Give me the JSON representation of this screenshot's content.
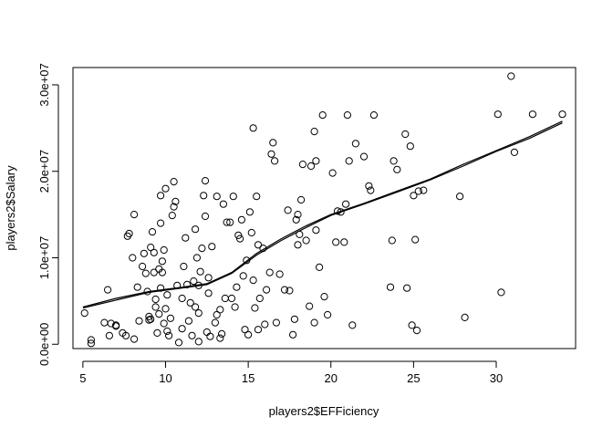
{
  "chart_data": {
    "type": "scatter",
    "title": "",
    "xlabel": "players2$EFFiciency",
    "ylabel": "players2$Salary",
    "xlim": [
      4.4,
      34.8
    ],
    "ylim": [
      -500000,
      32000000
    ],
    "x_ticks": [
      5,
      10,
      15,
      20,
      25,
      30
    ],
    "x_tick_labels": [
      "5",
      "10",
      "15",
      "20",
      "25",
      "30"
    ],
    "y_ticks": [
      0,
      10000000,
      20000000,
      30000000
    ],
    "y_tick_labels": [
      "0.0e+00",
      "1.0e+07",
      "2.0e+07",
      "3.0e+07"
    ],
    "grid": false,
    "legend": "none",
    "points": [
      [
        5.1,
        3600000
      ],
      [
        5.5,
        500000
      ],
      [
        5.5,
        100000
      ],
      [
        6.3,
        2500000
      ],
      [
        6.5,
        6300000
      ],
      [
        6.7,
        2400000
      ],
      [
        6.6,
        1000000
      ],
      [
        7.0,
        2200000
      ],
      [
        7.4,
        1300000
      ],
      [
        7.6,
        1000000
      ],
      [
        7.7,
        12500000
      ],
      [
        7.8,
        12800000
      ],
      [
        8.0,
        10000000
      ],
      [
        8.1,
        600000
      ],
      [
        8.1,
        15000000
      ],
      [
        8.3,
        6600000
      ],
      [
        8.4,
        2700000
      ],
      [
        8.6,
        9000000
      ],
      [
        8.7,
        10500000
      ],
      [
        8.8,
        8200000
      ],
      [
        8.9,
        6100000
      ],
      [
        9.0,
        3200000
      ],
      [
        9.1,
        2900000
      ],
      [
        9.1,
        11200000
      ],
      [
        9.2,
        13000000
      ],
      [
        9.3,
        8300000
      ],
      [
        9.3,
        10600000
      ],
      [
        9.4,
        5200000
      ],
      [
        9.4,
        4300000
      ],
      [
        9.5,
        1300000
      ],
      [
        9.6,
        8700000
      ],
      [
        9.6,
        3500000
      ],
      [
        9.7,
        17200000
      ],
      [
        9.7,
        14000000
      ],
      [
        9.7,
        6500000
      ],
      [
        9.8,
        9600000
      ],
      [
        9.8,
        8300000
      ],
      [
        9.9,
        2400000
      ],
      [
        9.9,
        10900000
      ],
      [
        10.0,
        18000000
      ],
      [
        10.0,
        4100000
      ],
      [
        10.1,
        5700000
      ],
      [
        10.1,
        1500000
      ],
      [
        10.2,
        1000000
      ],
      [
        10.3,
        3000000
      ],
      [
        10.4,
        14900000
      ],
      [
        10.5,
        15900000
      ],
      [
        10.5,
        18800000
      ],
      [
        10.6,
        16500000
      ],
      [
        10.7,
        6800000
      ],
      [
        10.8,
        200000
      ],
      [
        11.0,
        5300000
      ],
      [
        11.1,
        9000000
      ],
      [
        11.2,
        12300000
      ],
      [
        11.3,
        6900000
      ],
      [
        11.4,
        2700000
      ],
      [
        11.5,
        4800000
      ],
      [
        11.6,
        1000000
      ],
      [
        11.7,
        7300000
      ],
      [
        11.8,
        4300000
      ],
      [
        11.8,
        13300000
      ],
      [
        11.9,
        10000000
      ],
      [
        12.0,
        300000
      ],
      [
        12.0,
        3600000
      ],
      [
        12.1,
        8400000
      ],
      [
        12.2,
        11100000
      ],
      [
        12.3,
        17200000
      ],
      [
        12.4,
        18900000
      ],
      [
        12.4,
        14800000
      ],
      [
        12.5,
        1400000
      ],
      [
        12.6,
        5900000
      ],
      [
        12.6,
        7700000
      ],
      [
        12.7,
        900000
      ],
      [
        12.8,
        11300000
      ],
      [
        13.0,
        2500000
      ],
      [
        13.1,
        3400000
      ],
      [
        13.1,
        17100000
      ],
      [
        13.3,
        4000000
      ],
      [
        13.3,
        700000
      ],
      [
        13.4,
        1200000
      ],
      [
        13.5,
        16200000
      ],
      [
        13.6,
        5300000
      ],
      [
        13.7,
        14100000
      ],
      [
        13.9,
        14100000
      ],
      [
        14.0,
        5300000
      ],
      [
        14.1,
        17100000
      ],
      [
        14.2,
        4300000
      ],
      [
        14.3,
        6600000
      ],
      [
        14.4,
        12600000
      ],
      [
        14.5,
        12200000
      ],
      [
        14.6,
        14400000
      ],
      [
        14.7,
        7900000
      ],
      [
        14.8,
        1700000
      ],
      [
        14.9,
        9700000
      ],
      [
        15.0,
        1100000
      ],
      [
        15.1,
        15300000
      ],
      [
        15.2,
        12900000
      ],
      [
        15.3,
        25000000
      ],
      [
        15.3,
        7400000
      ],
      [
        15.4,
        4200000
      ],
      [
        15.5,
        17100000
      ],
      [
        15.6,
        11500000
      ],
      [
        15.6,
        1700000
      ],
      [
        15.7,
        5300000
      ],
      [
        15.9,
        11100000
      ],
      [
        16.0,
        2300000
      ],
      [
        16.1,
        6300000
      ],
      [
        16.3,
        8300000
      ],
      [
        16.4,
        22000000
      ],
      [
        16.5,
        23300000
      ],
      [
        16.6,
        21200000
      ],
      [
        16.7,
        2500000
      ],
      [
        16.9,
        8100000
      ],
      [
        17.2,
        6300000
      ],
      [
        17.4,
        15500000
      ],
      [
        17.5,
        6200000
      ],
      [
        17.7,
        1100000
      ],
      [
        17.8,
        2900000
      ],
      [
        17.9,
        14400000
      ],
      [
        18.0,
        15000000
      ],
      [
        18.0,
        11500000
      ],
      [
        18.1,
        12700000
      ],
      [
        18.2,
        16700000
      ],
      [
        18.3,
        20800000
      ],
      [
        18.5,
        12000000
      ],
      [
        18.7,
        4400000
      ],
      [
        18.8,
        20600000
      ],
      [
        19.0,
        24600000
      ],
      [
        19.0,
        2500000
      ],
      [
        19.1,
        21200000
      ],
      [
        19.1,
        13200000
      ],
      [
        19.3,
        8900000
      ],
      [
        19.5,
        26500000
      ],
      [
        19.6,
        5500000
      ],
      [
        19.8,
        3400000
      ],
      [
        20.1,
        19800000
      ],
      [
        20.3,
        11800000
      ],
      [
        20.4,
        15400000
      ],
      [
        20.6,
        15300000
      ],
      [
        20.8,
        11800000
      ],
      [
        20.9,
        16200000
      ],
      [
        21.0,
        26500000
      ],
      [
        21.1,
        21200000
      ],
      [
        21.3,
        2200000
      ],
      [
        21.5,
        23200000
      ],
      [
        22.0,
        21700000
      ],
      [
        22.3,
        18300000
      ],
      [
        22.4,
        17800000
      ],
      [
        22.6,
        26500000
      ],
      [
        23.6,
        6600000
      ],
      [
        23.7,
        12000000
      ],
      [
        23.8,
        21200000
      ],
      [
        24.0,
        20200000
      ],
      [
        24.5,
        24300000
      ],
      [
        24.6,
        6500000
      ],
      [
        24.8,
        22900000
      ],
      [
        24.9,
        2200000
      ],
      [
        25.0,
        17200000
      ],
      [
        25.1,
        12100000
      ],
      [
        25.2,
        1600000
      ],
      [
        25.3,
        17700000
      ],
      [
        25.6,
        17800000
      ],
      [
        27.8,
        17100000
      ],
      [
        28.1,
        3100000
      ],
      [
        30.1,
        26600000
      ],
      [
        30.3,
        6000000
      ],
      [
        30.9,
        31000000
      ],
      [
        31.1,
        22200000
      ],
      [
        32.2,
        26600000
      ],
      [
        34.0,
        26600000
      ],
      [
        7.0,
        2100000
      ],
      [
        9.0,
        2800000
      ],
      [
        11.0,
        1800000
      ],
      [
        12.0,
        6800000
      ]
    ],
    "fit_lines": [
      {
        "x": [
          5,
          7,
          9,
          11,
          12.5,
          14,
          15.5,
          17,
          18.5,
          20,
          22,
          24,
          26,
          28,
          30,
          32,
          34
        ],
        "y": [
          4300000,
          5300000,
          6100000,
          6600000,
          7000000,
          8300000,
          10500000,
          12200000,
          13700000,
          15000000,
          16300000,
          17700000,
          19100000,
          20800000,
          22400000,
          24000000,
          25800000
        ]
      },
      {
        "x": [
          5,
          7,
          9,
          11,
          12.5,
          14,
          15.5,
          17,
          18.5,
          20,
          22,
          24,
          26,
          28,
          30,
          32,
          34
        ],
        "y": [
          4200000,
          5100000,
          6000000,
          6500000,
          6900000,
          8200000,
          10300000,
          12000000,
          13500000,
          14900000,
          16200000,
          17600000,
          19000000,
          20600000,
          22300000,
          23800000,
          25600000
        ]
      }
    ]
  }
}
